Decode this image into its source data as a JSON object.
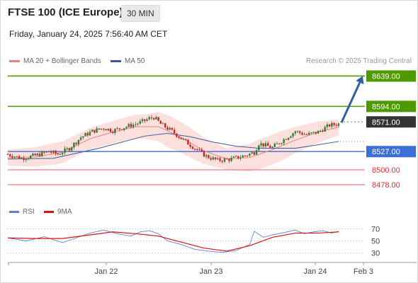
{
  "header": {
    "title": "FTSE 100 (ICE Europe)",
    "timeframe": "30 MIN",
    "datetime": "Friday, January 24, 2025 7:56:40 AM CET"
  },
  "legend": {
    "bollinger": "MA 20 + Bollinger Bands",
    "ma50": "MA 50",
    "credit": "Research © 2025 Trading Central",
    "rsi": "RSI",
    "rsi_ma": "9MA"
  },
  "colors": {
    "bollinger": "#f08080",
    "ma50": "#3c5a96",
    "bullish": "#2e7d32",
    "bearish": "#c62828",
    "resistance": "#4c9a00",
    "pivot": "#3a6fd8",
    "support": "#e06060",
    "current": "#333333",
    "arrow": "#2e5fa3",
    "rsi_line": "#5b7fd6",
    "rsi_ma_line": "#e01010"
  },
  "chart_data": [
    {
      "type": "candlestick",
      "x_ticks": [
        "Jan 22",
        "Jan 23",
        "Jan 24",
        "Feb 3"
      ],
      "ylim": [
        8458,
        8650
      ],
      "current_price": 8571.0,
      "levels": [
        {
          "label": "8639.00",
          "value": 8639.0,
          "kind": "resistance"
        },
        {
          "label": "8594.00",
          "value": 8594.0,
          "kind": "resistance"
        },
        {
          "label": "8571.00",
          "value": 8571.0,
          "kind": "current"
        },
        {
          "label": "8527.00",
          "value": 8527.0,
          "kind": "pivot"
        },
        {
          "label": "8500.00",
          "value": 8500.0,
          "kind": "support"
        },
        {
          "label": "8478.00",
          "value": 8478.0,
          "kind": "support"
        }
      ],
      "projection": {
        "from": 8570,
        "to": 8639
      },
      "close_path": [
        [
          0,
          8523
        ],
        [
          6,
          8517
        ],
        [
          12,
          8521
        ],
        [
          18,
          8527
        ],
        [
          22,
          8523
        ],
        [
          27,
          8532
        ],
        [
          32,
          8548
        ],
        [
          37,
          8557
        ],
        [
          42,
          8562
        ],
        [
          46,
          8558
        ],
        [
          50,
          8562
        ],
        [
          54,
          8566
        ],
        [
          58,
          8570
        ],
        [
          62,
          8576
        ],
        [
          64,
          8578
        ],
        [
          67,
          8568
        ],
        [
          72,
          8557
        ],
        [
          77,
          8544
        ],
        [
          82,
          8532
        ],
        [
          87,
          8520
        ],
        [
          92,
          8514
        ],
        [
          98,
          8516
        ],
        [
          104,
          8521
        ],
        [
          108,
          8526
        ],
        [
          110,
          8539
        ],
        [
          116,
          8533
        ],
        [
          121,
          8545
        ],
        [
          126,
          8557
        ],
        [
          131,
          8552
        ],
        [
          136,
          8556
        ],
        [
          141,
          8566
        ],
        [
          145,
          8568
        ]
      ],
      "bollinger_mid": [
        [
          0,
          8518
        ],
        [
          12,
          8519
        ],
        [
          24,
          8526
        ],
        [
          36,
          8546
        ],
        [
          46,
          8556
        ],
        [
          56,
          8564
        ],
        [
          66,
          8564
        ],
        [
          76,
          8548
        ],
        [
          86,
          8528
        ],
        [
          96,
          8516
        ],
        [
          106,
          8518
        ],
        [
          116,
          8530
        ],
        [
          126,
          8544
        ],
        [
          136,
          8556
        ],
        [
          145,
          8563
        ]
      ],
      "bollinger_width": [
        [
          0,
          12
        ],
        [
          20,
          16
        ],
        [
          40,
          16
        ],
        [
          60,
          18
        ],
        [
          70,
          24
        ],
        [
          80,
          22
        ],
        [
          95,
          16
        ],
        [
          110,
          22
        ],
        [
          120,
          22
        ],
        [
          135,
          16
        ],
        [
          145,
          12
        ]
      ],
      "ma50": [
        [
          0,
          8516
        ],
        [
          20,
          8517
        ],
        [
          40,
          8532
        ],
        [
          60,
          8550
        ],
        [
          70,
          8554
        ],
        [
          80,
          8549
        ],
        [
          90,
          8541
        ],
        [
          100,
          8535
        ],
        [
          110,
          8532
        ],
        [
          118,
          8532
        ],
        [
          126,
          8532
        ],
        [
          134,
          8536
        ],
        [
          145,
          8542
        ]
      ]
    },
    {
      "type": "line",
      "name": "RSI",
      "ylim": [
        20,
        80
      ],
      "y_ticks": [
        70,
        50,
        30
      ],
      "series": [
        {
          "name": "RSI",
          "x": [
            0,
            8,
            16,
            24,
            30,
            36,
            42,
            48,
            54,
            58,
            62,
            66,
            70,
            76,
            82,
            88,
            94,
            100,
            106,
            108,
            112,
            116,
            120,
            126,
            130,
            134,
            138,
            142,
            145
          ],
          "values": [
            55,
            50,
            57,
            47,
            55,
            63,
            68,
            62,
            58,
            65,
            67,
            62,
            50,
            44,
            36,
            33,
            31,
            34,
            44,
            66,
            56,
            60,
            63,
            68,
            62,
            65,
            67,
            63,
            66
          ]
        },
        {
          "name": "9MA",
          "x": [
            0,
            12,
            24,
            36,
            46,
            56,
            66,
            76,
            86,
            96,
            106,
            116,
            126,
            136,
            145
          ],
          "values": [
            55,
            54,
            54,
            60,
            65,
            62,
            58,
            48,
            38,
            33,
            42,
            56,
            63,
            63,
            65
          ]
        }
      ]
    }
  ]
}
